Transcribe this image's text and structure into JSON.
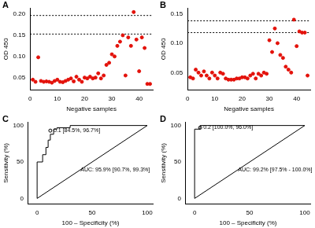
{
  "chart_data": [
    {
      "type": "scatter",
      "panel": "A",
      "x_label": "Negative samples",
      "y_label": "OD 450",
      "x": [
        1,
        2,
        3,
        4,
        5,
        6,
        7,
        8,
        9,
        10,
        11,
        12,
        13,
        14,
        15,
        16,
        17,
        18,
        19,
        20,
        21,
        22,
        23,
        24,
        25,
        26,
        27,
        28,
        29,
        30,
        31,
        32,
        33,
        34,
        35,
        36,
        37,
        38,
        39,
        40,
        41,
        42,
        43,
        44
      ],
      "values": [
        0.045,
        0.04,
        0.098,
        0.042,
        0.04,
        0.041,
        0.04,
        0.038,
        0.042,
        0.045,
        0.04,
        0.039,
        0.042,
        0.045,
        0.048,
        0.041,
        0.052,
        0.045,
        0.04,
        0.05,
        0.048,
        0.052,
        0.048,
        0.05,
        0.06,
        0.048,
        0.055,
        0.08,
        0.085,
        0.105,
        0.1,
        0.125,
        0.135,
        0.15,
        0.055,
        0.145,
        0.125,
        0.205,
        0.14,
        0.065,
        0.145,
        0.12,
        0.035,
        0.035
      ],
      "color": "#e3120b",
      "marker": "circle",
      "thresholds": [
        0.197,
        0.153
      ],
      "xlim": [
        0,
        45
      ],
      "xticks": [
        0,
        10,
        20,
        30,
        40
      ],
      "ylim": [
        0.02,
        0.215
      ],
      "yticks": [
        0.05,
        {
          "value": 0.1,
          "label": "0.10"
        },
        0.15,
        {
          "value": 0.2,
          "label": "0.20"
        }
      ],
      "grid": false
    },
    {
      "type": "scatter",
      "panel": "B",
      "x_label": "Negative samples",
      "y_label": "OD 450",
      "x": [
        1,
        2,
        3,
        4,
        5,
        6,
        7,
        8,
        9,
        10,
        11,
        12,
        13,
        14,
        15,
        16,
        17,
        18,
        19,
        20,
        21,
        22,
        23,
        24,
        25,
        26,
        27,
        28,
        29,
        30,
        31,
        32,
        33,
        34,
        35,
        36,
        37,
        38,
        39,
        40,
        41,
        42,
        43,
        44
      ],
      "values": [
        0.042,
        0.04,
        0.055,
        0.05,
        0.045,
        0.052,
        0.045,
        0.04,
        0.05,
        0.045,
        0.04,
        0.05,
        0.048,
        0.04,
        0.038,
        0.038,
        0.038,
        0.04,
        0.04,
        0.042,
        0.042,
        0.04,
        0.045,
        0.048,
        0.04,
        0.048,
        0.045,
        0.05,
        0.048,
        0.105,
        0.085,
        0.125,
        0.1,
        0.08,
        0.075,
        0.06,
        0.055,
        0.05,
        0.14,
        0.095,
        0.12,
        0.118,
        0.118,
        0.045
      ],
      "color": "#e3120b",
      "marker": "circle",
      "thresholds": [
        0.138,
        0.118
      ],
      "xlim": [
        0,
        45
      ],
      "xticks": [
        0,
        10,
        20,
        30,
        40
      ],
      "ylim": [
        0.02,
        0.16
      ],
      "yticks": [
        0.05,
        {
          "value": 0.1,
          "label": "0.10"
        },
        0.15
      ],
      "grid": false
    },
    {
      "type": "line",
      "panel": "C",
      "x_label": "100 – Specificity (%)",
      "y_label": "Sensitivity (%)",
      "series": [
        {
          "x": [
            0,
            0,
            5,
            5,
            8,
            8,
            10,
            10,
            12,
            12,
            15,
            15,
            18,
            18,
            30,
            30,
            100
          ],
          "values": [
            0,
            50,
            50,
            60,
            60,
            70,
            70,
            80,
            80,
            88,
            88,
            95,
            95,
            97,
            97,
            100,
            100
          ],
          "color": "#000000",
          "line_style": "solid"
        },
        {
          "x": [
            0,
            100
          ],
          "values": [
            0,
            100
          ],
          "color": "#000000",
          "line_style": "solid"
        }
      ],
      "points": [
        {
          "x": 12,
          "y": 93,
          "label": "0.1 [84.5%, 96.7%]"
        }
      ],
      "annotation": "AUC: 95.9% [90.7%, 99.3%]",
      "xlim": [
        -8,
        105
      ],
      "xticks": [
        0,
        50,
        100
      ],
      "ylim": [
        -8,
        105
      ],
      "yticks": [
        0,
        50,
        100
      ],
      "grid": false
    },
    {
      "type": "line",
      "panel": "D",
      "x_label": "100 – Specificity (%)",
      "y_label": "Sensitivity (%)",
      "series": [
        {
          "x": [
            0,
            0,
            5,
            5,
            100
          ],
          "values": [
            0,
            95,
            95,
            100,
            100
          ],
          "color": "#000000",
          "line_style": "solid"
        },
        {
          "x": [
            0,
            100
          ],
          "values": [
            0,
            100
          ],
          "color": "#000000",
          "line_style": "solid"
        }
      ],
      "points": [
        {
          "x": 5,
          "y": 97,
          "label": "0.2 [100.0%, 96.0%]"
        }
      ],
      "annotation": "AUC: 99.2% [97.5% - 100.0%]",
      "xlim": [
        -8,
        105
      ],
      "xticks": [
        0,
        50,
        100
      ],
      "ylim": [
        -8,
        105
      ],
      "yticks": [
        0,
        50,
        100
      ],
      "grid": false
    }
  ]
}
